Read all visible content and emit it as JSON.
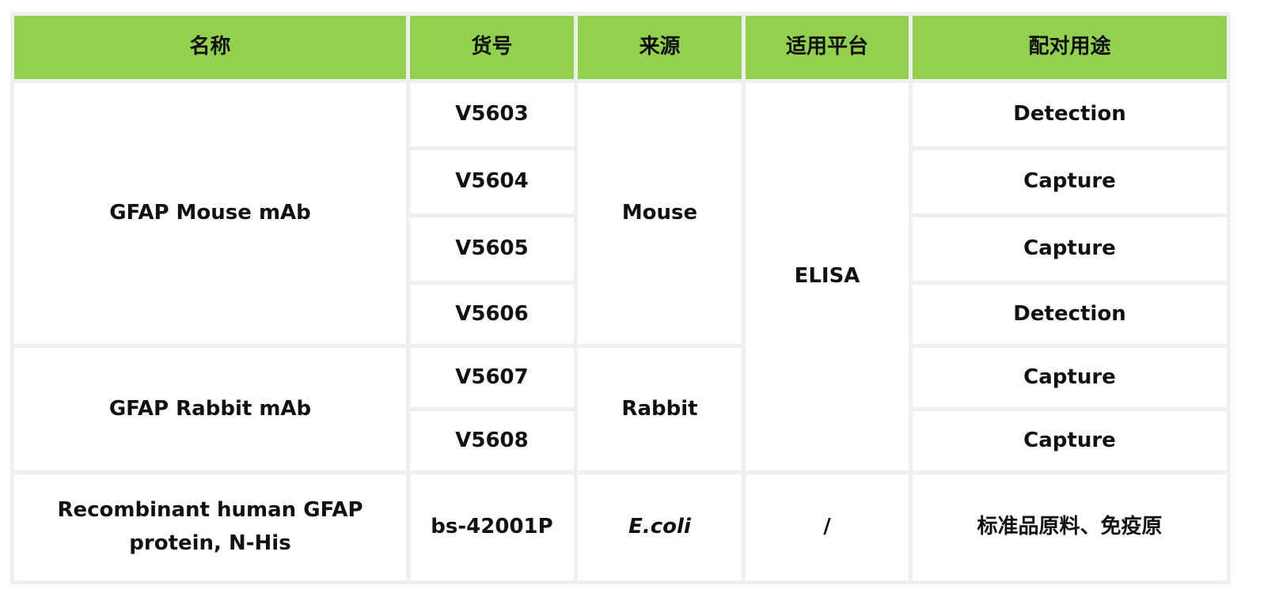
{
  "header": {
    "name": "名称",
    "catalog": "货号",
    "source": "来源",
    "platform": "适用平台",
    "use": "配对用途"
  },
  "header_color": "#92d050",
  "rows": {
    "gfap_mouse": {
      "name": "GFAP Mouse mAb",
      "source": "Mouse",
      "platform": "ELISA",
      "items": [
        {
          "catalog": "V5603",
          "use": "Detection"
        },
        {
          "catalog": "V5604",
          "use": "Capture"
        },
        {
          "catalog": "V5605",
          "use": "Capture"
        },
        {
          "catalog": "V5606",
          "use": "Detection"
        }
      ]
    },
    "gfap_rabbit": {
      "name": "GFAP Rabbit mAb",
      "source": "Rabbit",
      "items": [
        {
          "catalog": "V5607",
          "use": "Capture"
        },
        {
          "catalog": "V5608",
          "use": "Capture"
        }
      ]
    },
    "recombinant": {
      "name_line1": "Recombinant human GFAP",
      "name_line2": "protein, N-His",
      "catalog": "bs-42001P",
      "source": "E.coli",
      "platform": "/",
      "use": "标准品原料、免疫原"
    }
  }
}
